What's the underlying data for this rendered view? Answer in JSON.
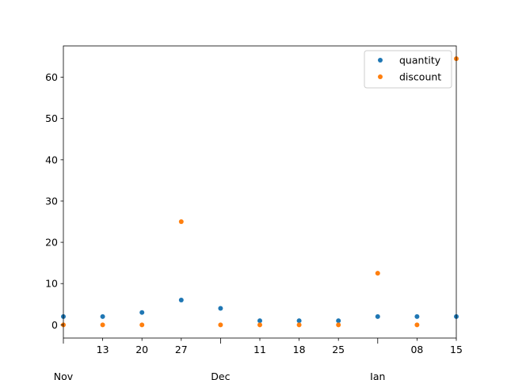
{
  "chart_data": {
    "type": "scatter",
    "title": "",
    "xlabel": "",
    "ylabel": "",
    "x": [
      "2020-11-06",
      "2020-11-13",
      "2020-11-20",
      "2020-11-27",
      "2020-12-04",
      "2020-12-11",
      "2020-12-18",
      "2020-12-25",
      "2021-01-01",
      "2021-01-08",
      "2021-01-15"
    ],
    "xlim": [
      "2020-11-06",
      "2021-01-15"
    ],
    "ylim": [
      -3.2,
      67.6
    ],
    "x_minor_ticks": [
      "13",
      "20",
      "27",
      "11",
      "18",
      "25",
      "08",
      "15"
    ],
    "x_major_ticks": [
      "Nov",
      "Dec",
      "Jan"
    ],
    "y_ticks": [
      "0",
      "10",
      "20",
      "30",
      "40",
      "50",
      "60"
    ],
    "series": [
      {
        "name": "quantity",
        "color": "#1f77b4",
        "values": [
          2,
          2,
          3,
          6,
          4,
          1,
          1,
          1,
          2,
          2,
          2
        ]
      },
      {
        "name": "discount",
        "color": "#ff7f0e",
        "values": [
          0,
          0,
          0,
          25,
          0,
          0,
          0,
          0,
          12.5,
          0,
          64.5
        ]
      }
    ],
    "legend": {
      "position": "top-right"
    },
    "grid": false
  }
}
